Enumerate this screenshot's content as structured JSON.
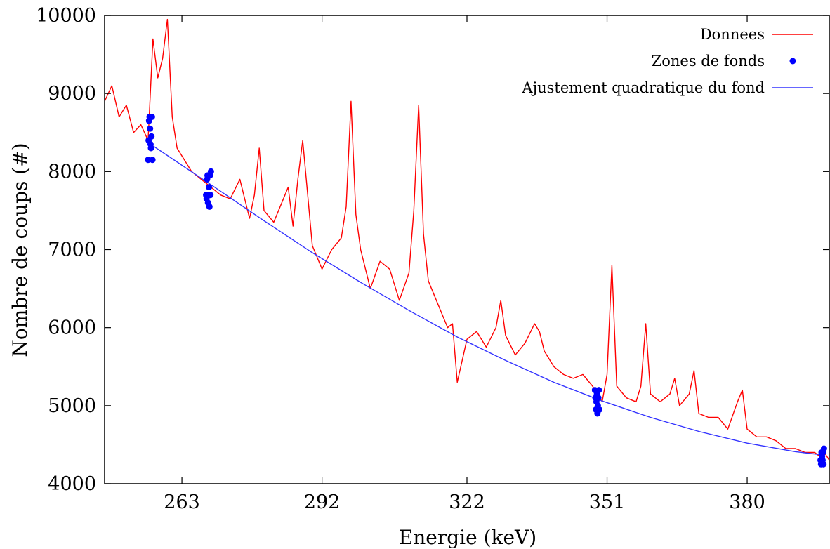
{
  "chart_data": {
    "type": "line",
    "title": "",
    "xlabel": "Energie (keV)",
    "ylabel": "Nombre de coups (#)",
    "xlim": [
      247,
      397
    ],
    "ylim": [
      4000,
      10000
    ],
    "x_ticks": [
      263,
      292,
      322,
      351,
      380
    ],
    "y_ticks": [
      4000,
      5000,
      6000,
      7000,
      8000,
      9000,
      10000
    ],
    "grid": false,
    "legend_position": "top-right",
    "colors": {
      "data": "#ff0000",
      "background": "#0000ff",
      "fit": "#3333ff"
    },
    "series": [
      {
        "name": "Donnees",
        "style": "line",
        "x": [
          247.0,
          248.5,
          250.0,
          251.5,
          253.0,
          254.5,
          256.0,
          257.0,
          258.0,
          259.0,
          260.0,
          261.0,
          262.0,
          263.0,
          265.0,
          267.0,
          269.0,
          271.0,
          273.0,
          275.0,
          277.0,
          278.0,
          279.0,
          280.0,
          282.0,
          284.0,
          285.0,
          286.0,
          287.0,
          288.0,
          290.0,
          292.0,
          294.0,
          296.0,
          297.0,
          298.0,
          299.0,
          300.0,
          302.0,
          304.0,
          306.0,
          308.0,
          310.0,
          311.0,
          312.0,
          313.0,
          314.0,
          316.0,
          318.0,
          319.0,
          320.0,
          322.0,
          324.0,
          326.0,
          328.0,
          329.0,
          330.0,
          332.0,
          334.0,
          336.0,
          337.0,
          338.0,
          340.0,
          342.0,
          344.0,
          346.0,
          348.0,
          349.0,
          350.0,
          351.0,
          352.0,
          353.0,
          355.0,
          357.0,
          358.0,
          359.0,
          360.0,
          362.0,
          364.0,
          365.0,
          366.0,
          368.0,
          369.0,
          370.0,
          372.0,
          374.0,
          376.0,
          378.0,
          379.0,
          380.0,
          382.0,
          384.0,
          386.0,
          388.0,
          390.0,
          392.0,
          394.0,
          395.0,
          396.0,
          397.0
        ],
        "y": [
          8900,
          9100,
          8700,
          8850,
          8500,
          8600,
          8400,
          9700,
          9200,
          9450,
          9950,
          8700,
          8300,
          8200,
          8000,
          7900,
          7800,
          7700,
          7650,
          7900,
          7400,
          7700,
          8300,
          7500,
          7350,
          7650,
          7800,
          7300,
          7900,
          8400,
          7050,
          6750,
          7000,
          7150,
          7550,
          8900,
          7450,
          7000,
          6500,
          6850,
          6750,
          6350,
          6700,
          7500,
          8850,
          7200,
          6600,
          6300,
          6000,
          6050,
          5300,
          5850,
          5950,
          5750,
          6000,
          6350,
          5900,
          5650,
          5800,
          6050,
          5950,
          5700,
          5500,
          5400,
          5350,
          5400,
          5250,
          5150,
          5050,
          5400,
          6800,
          5250,
          5100,
          5050,
          5250,
          6050,
          5150,
          5050,
          5150,
          5350,
          5000,
          5150,
          5450,
          4900,
          4850,
          4850,
          4700,
          5050,
          5200,
          4700,
          4600,
          4600,
          4550,
          4450,
          4450,
          4400,
          4400,
          4350,
          4400,
          4300
        ]
      },
      {
        "name": "Zones de fonds",
        "style": "points",
        "x": [
          256.0,
          256.1,
          256.2,
          256.3,
          256.4,
          256.5,
          256.6,
          256.7,
          256.8,
          256.9,
          268.0,
          268.1,
          268.2,
          268.3,
          268.4,
          268.5,
          268.6,
          268.7,
          268.8,
          268.9,
          269.0,
          348.5,
          348.6,
          348.7,
          348.8,
          348.9,
          349.0,
          349.1,
          349.2,
          349.3,
          349.4,
          395.2,
          395.3,
          395.4,
          395.5,
          395.6,
          395.7,
          395.8,
          395.9
        ],
        "y": [
          8150,
          8400,
          8650,
          8700,
          8550,
          8350,
          8300,
          8450,
          8700,
          8150,
          7700,
          7650,
          7900,
          7950,
          7600,
          7700,
          7800,
          7550,
          7950,
          7700,
          8000,
          5200,
          5100,
          4950,
          5050,
          5150,
          4900,
          5000,
          5100,
          5200,
          4950,
          4300,
          4250,
          4400,
          4350,
          4300,
          4400,
          4250,
          4450
        ]
      },
      {
        "name": "Ajustement quadratique du fond",
        "style": "line",
        "x": [
          256.5,
          263.0,
          270.0,
          280.0,
          290.0,
          300.0,
          310.0,
          320.0,
          330.0,
          340.0,
          350.0,
          360.0,
          370.0,
          380.0,
          390.0,
          395.5
        ],
        "y": [
          8350,
          8080,
          7790,
          7370,
          6960,
          6580,
          6220,
          5880,
          5580,
          5300,
          5060,
          4850,
          4670,
          4520,
          4410,
          4370
        ]
      }
    ]
  }
}
